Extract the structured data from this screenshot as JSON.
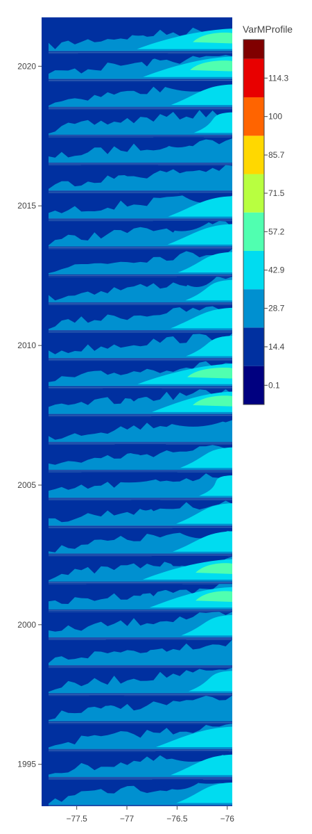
{
  "chart_data": {
    "type": "heatmap",
    "subtype": "contour",
    "x_ticks": [
      -77.5,
      -77,
      -76.5,
      -76
    ],
    "x_tick_labels": [
      "−77.5",
      "−77",
      "−76.5",
      "−76"
    ],
    "y_ticks": [
      1995,
      2000,
      2005,
      2010,
      2015,
      2020
    ],
    "y_tick_labels": [
      "1995",
      "2000",
      "2005",
      "2010",
      "2015",
      "2020"
    ],
    "xlim": [
      -77.85,
      -75.95
    ],
    "ylim": [
      1993.5,
      2021.75
    ],
    "colorbar": {
      "title": "VarMProfile",
      "tick_values": [
        0.1,
        14.4,
        28.7,
        42.9,
        57.2,
        71.5,
        85.7,
        100,
        114.3
      ],
      "tick_labels": [
        "0.1",
        "14.4",
        "28.7",
        "42.9",
        "57.2",
        "71.5",
        "85.7",
        "100",
        "114.3"
      ],
      "range": [
        -7.05,
        121.45
      ],
      "levels": [
        {
          "from": -7.05,
          "to": 7.25,
          "color": "#000080"
        },
        {
          "from": 7.25,
          "to": 21.55,
          "color": "#0030a0"
        },
        {
          "from": 21.55,
          "to": 35.8,
          "color": "#0090d0"
        },
        {
          "from": 35.8,
          "to": 50.05,
          "color": "#00dcf0"
        },
        {
          "from": 50.05,
          "to": 64.35,
          "color": "#50ffb0"
        },
        {
          "from": 64.35,
          "to": 78.6,
          "color": "#b8ff40"
        },
        {
          "from": 78.6,
          "to": 92.85,
          "color": "#ffd800"
        },
        {
          "from": 92.85,
          "to": 107.15,
          "color": "#ff6400"
        },
        {
          "from": 107.15,
          "to": 121.45,
          "color": "#e80000"
        },
        {
          "from": 121.45,
          "to": 128.6,
          "color": "#800000"
        }
      ]
    },
    "year_profiles": [
      {
        "year": 2021,
        "peak": 48
      },
      {
        "year": 2020,
        "peak": 50
      },
      {
        "year": 2019,
        "peak": 32
      },
      {
        "year": 2018,
        "peak": 30
      },
      {
        "year": 2017,
        "peak": 22
      },
      {
        "year": 2016,
        "peak": 24
      },
      {
        "year": 2015,
        "peak": 36
      },
      {
        "year": 2014,
        "peak": 34
      },
      {
        "year": 2013,
        "peak": 30
      },
      {
        "year": 2012,
        "peak": 34
      },
      {
        "year": 2011,
        "peak": 32
      },
      {
        "year": 2010,
        "peak": 36
      },
      {
        "year": 2009,
        "peak": 52
      },
      {
        "year": 2008,
        "peak": 48
      },
      {
        "year": 2007,
        "peak": 26
      },
      {
        "year": 2006,
        "peak": 34
      },
      {
        "year": 2005,
        "peak": 30
      },
      {
        "year": 2004,
        "peak": 30
      },
      {
        "year": 2003,
        "peak": 32
      },
      {
        "year": 2002,
        "peak": 46
      },
      {
        "year": 2001,
        "peak": 46
      },
      {
        "year": 2000,
        "peak": 34
      },
      {
        "year": 1999,
        "peak": 24
      },
      {
        "year": 1998,
        "peak": 30
      },
      {
        "year": 1997,
        "peak": 26
      },
      {
        "year": 1996,
        "peak": 40
      },
      {
        "year": 1995,
        "peak": 34
      },
      {
        "year": 1994,
        "peak": 30
      }
    ]
  }
}
